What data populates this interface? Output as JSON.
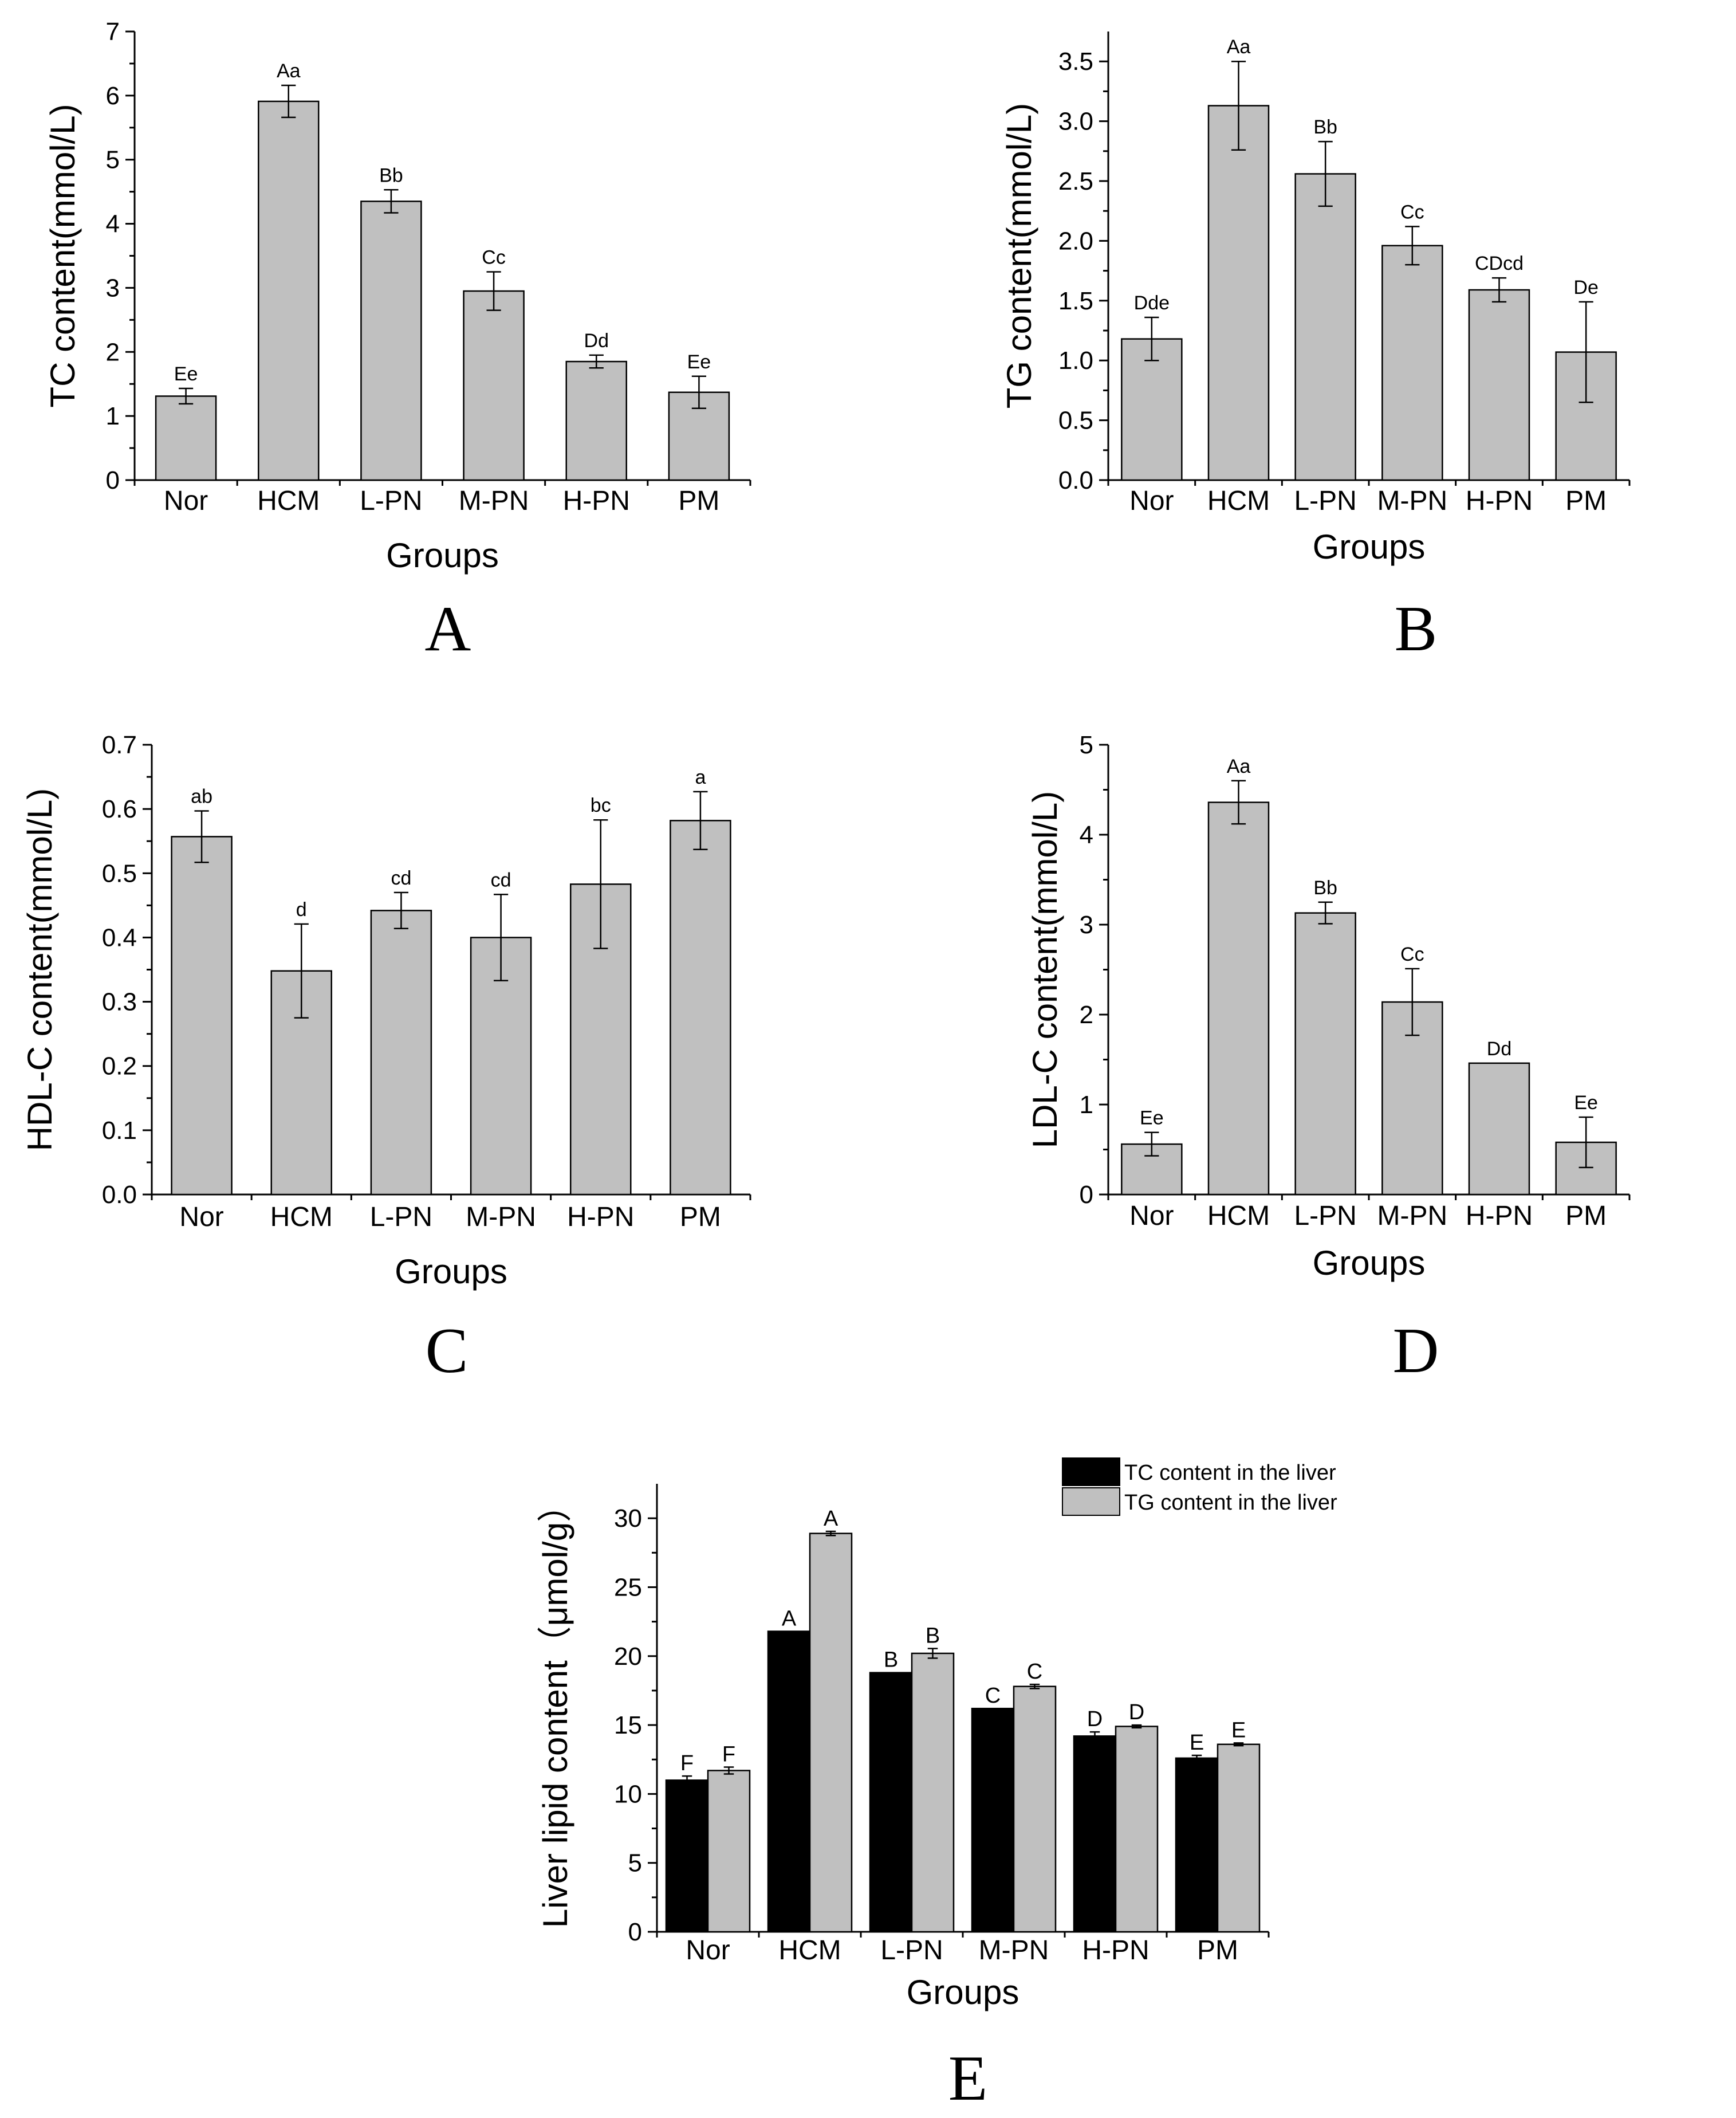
{
  "colors": {
    "gray_bar": "#c0c0c0",
    "black_bar": "#000000",
    "axis": "#000000"
  },
  "chart_data": [
    {
      "id": "A",
      "type": "bar",
      "panel_label": "A",
      "categories": [
        "Nor",
        "HCM",
        "L-PN",
        "M-PN",
        "H-PN",
        "PM"
      ],
      "values": [
        1.31,
        5.91,
        4.35,
        2.95,
        1.85,
        1.37
      ],
      "errors": [
        0.12,
        0.25,
        0.18,
        0.3,
        0.1,
        0.25
      ],
      "labels": [
        "Ee",
        "Aa",
        "Bb",
        "Cc",
        "Dd",
        "Ee"
      ],
      "ylim": [
        0,
        7
      ],
      "yticks": [
        0,
        1,
        2,
        3,
        4,
        5,
        6,
        7
      ],
      "ytick_labels": [
        "0",
        "1",
        "2",
        "3",
        "4",
        "5",
        "6",
        "7"
      ],
      "xlabel": "Groups",
      "ylabel": "TC content(mmol/L)"
    },
    {
      "id": "B",
      "type": "bar",
      "panel_label": "B",
      "categories": [
        "Nor",
        "HCM",
        "L-PN",
        "M-PN",
        "H-PN",
        "PM"
      ],
      "values": [
        1.18,
        3.13,
        2.56,
        1.96,
        1.59,
        1.07
      ],
      "errors": [
        0.18,
        0.37,
        0.27,
        0.16,
        0.1,
        0.42
      ],
      "labels": [
        "Dde",
        "Aa",
        "Bb",
        "Cc",
        "CDcd",
        "De"
      ],
      "ylim": [
        0,
        3.75
      ],
      "yticks": [
        0,
        0.5,
        1,
        1.5,
        2,
        2.5,
        3,
        3.5
      ],
      "ytick_labels": [
        "0.0",
        "0.5",
        "1.0",
        "1.5",
        "2.0",
        "2.5",
        "3.0",
        "3.5"
      ],
      "xlabel": "Groups",
      "ylabel": "TG content(mmol/L)"
    },
    {
      "id": "C",
      "type": "bar",
      "panel_label": "C",
      "categories": [
        "Nor",
        "HCM",
        "L-PN",
        "M-PN",
        "H-PN",
        "PM"
      ],
      "values": [
        0.557,
        0.348,
        0.442,
        0.4,
        0.483,
        0.582
      ],
      "errors": [
        0.04,
        0.073,
        0.028,
        0.067,
        0.1,
        0.045
      ],
      "labels": [
        "ab",
        "d",
        "cd",
        "cd",
        "bc",
        "a"
      ],
      "ylim": [
        0,
        0.7
      ],
      "yticks": [
        0,
        0.1,
        0.2,
        0.3,
        0.4,
        0.5,
        0.6,
        0.7
      ],
      "ytick_labels": [
        "0.0",
        "0.1",
        "0.2",
        "0.3",
        "0.4",
        "0.5",
        "0.6",
        "0.7"
      ],
      "xlabel": "Groups",
      "ylabel": "HDL-C content(mmol/L)"
    },
    {
      "id": "D",
      "type": "bar",
      "panel_label": "D",
      "categories": [
        "Nor",
        "HCM",
        "L-PN",
        "M-PN",
        "H-PN",
        "PM"
      ],
      "values": [
        0.56,
        4.36,
        3.13,
        2.14,
        1.46,
        0.58
      ],
      "errors": [
        0.13,
        0.24,
        0.12,
        0.37,
        0.0,
        0.28
      ],
      "labels": [
        "Ee",
        "Aa",
        "Bb",
        "Cc",
        "Dd",
        "Ee"
      ],
      "ylim": [
        0,
        5
      ],
      "yticks": [
        0,
        1,
        2,
        3,
        4,
        5
      ],
      "ytick_labels": [
        "0",
        "1",
        "2",
        "3",
        "4",
        "5"
      ],
      "xlabel": "Groups",
      "ylabel": "LDL-C content(mmol/L)"
    },
    {
      "id": "E",
      "type": "bar",
      "panel_label": "E",
      "categories": [
        "Nor",
        "HCM",
        "L-PN",
        "M-PN",
        "H-PN",
        "PM"
      ],
      "series": [
        {
          "name": "TC content in the liver",
          "color": "#000000",
          "values": [
            11.0,
            21.8,
            18.8,
            16.2,
            14.2,
            12.6
          ],
          "errors": [
            0.3,
            0.0,
            0.0,
            0.0,
            0.3,
            0.2
          ],
          "labels": [
            "F",
            "A",
            "B",
            "C",
            "D",
            "E"
          ]
        },
        {
          "name": "TG content in the liver",
          "color": "#c0c0c0",
          "values": [
            11.7,
            28.9,
            20.2,
            17.8,
            14.9,
            13.6
          ],
          "errors": [
            0.25,
            0.15,
            0.35,
            0.15,
            0.1,
            0.1
          ],
          "labels": [
            "F",
            "A",
            "B",
            "C",
            "D",
            "E"
          ]
        }
      ],
      "ylim": [
        0,
        32.5
      ],
      "yticks": [
        0,
        5,
        10,
        15,
        20,
        25,
        30
      ],
      "ytick_labels": [
        "0",
        "5",
        "10",
        "15",
        "20",
        "25",
        "30"
      ],
      "xlabel": "Groups",
      "ylabel": "Liver lipid content（μmol/g）",
      "legend_position": "top-right"
    }
  ]
}
